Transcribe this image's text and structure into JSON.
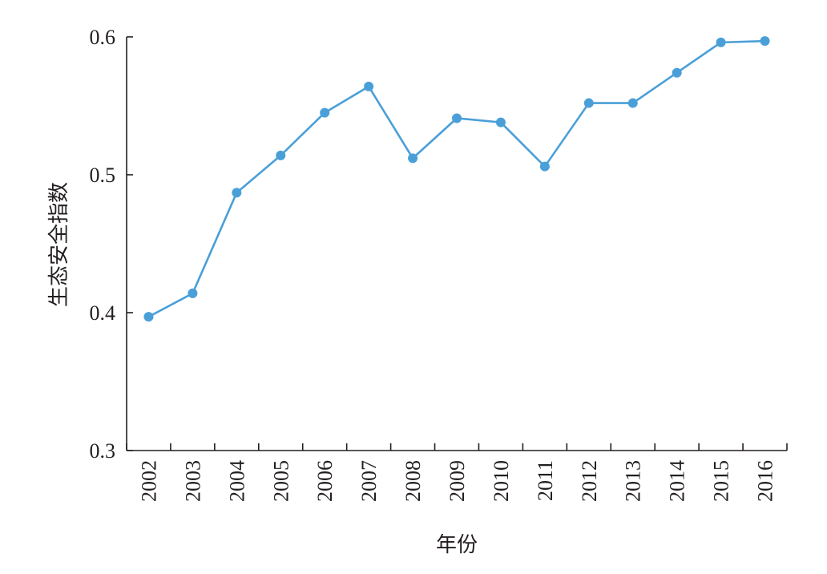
{
  "chart_data": {
    "type": "line",
    "title": "",
    "xlabel": "年份",
    "ylabel": "生态安全指数",
    "categories": [
      "2002",
      "2003",
      "2004",
      "2005",
      "2006",
      "2007",
      "2008",
      "2009",
      "2010",
      "2011",
      "2012",
      "2013",
      "2014",
      "2015",
      "2016"
    ],
    "series": [
      {
        "values": [
          0.397,
          0.414,
          0.487,
          0.514,
          0.545,
          0.564,
          0.512,
          0.541,
          0.538,
          0.506,
          0.552,
          0.552,
          0.574,
          0.596,
          0.597
        ]
      }
    ],
    "ylim": [
      0.3,
      0.6
    ],
    "yticks": [
      "0.3",
      "0.4",
      "0.5",
      "0.6"
    ],
    "grid": false,
    "legend": "none",
    "colors": {
      "line": "#4a9fd8",
      "marker": "#4a9fd8",
      "axis": "#231f20"
    }
  }
}
